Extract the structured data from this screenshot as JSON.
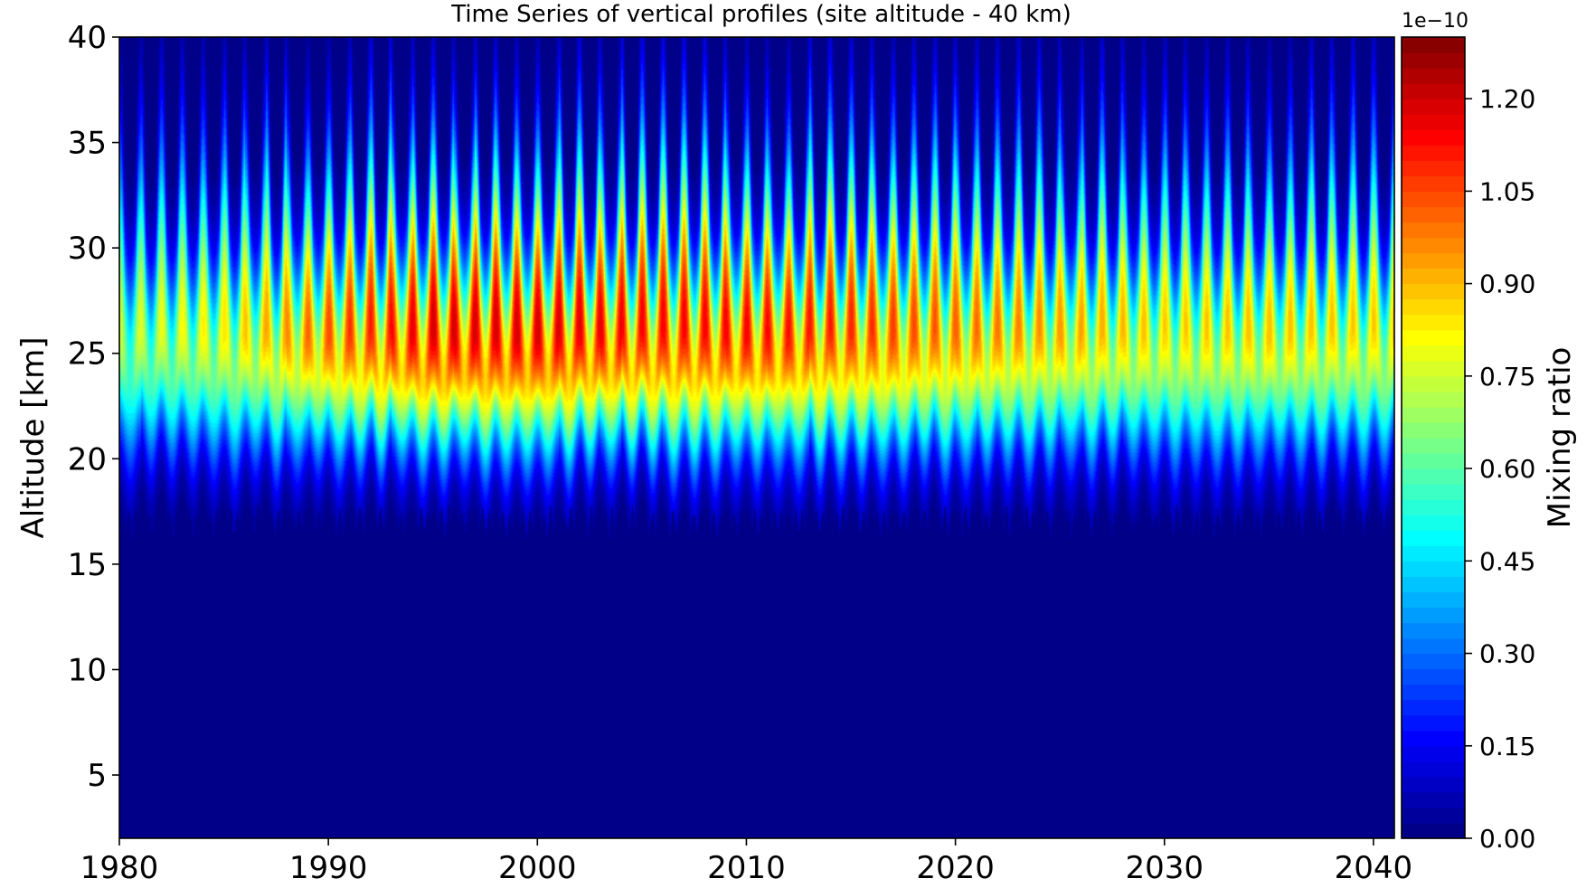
{
  "chart_data": {
    "type": "heatmap",
    "title": "Time Series of vertical profiles (site altitude - 40 km)",
    "xlabel": "",
    "ylabel": "Altitude [km]",
    "colorbar_label": "Mixing ratio",
    "colorbar_offset": "1e−10",
    "colormap": "jet",
    "xlim": [
      1980,
      2041
    ],
    "ylim": [
      2,
      40
    ],
    "clim": [
      0,
      1.3
    ],
    "x_ticks": [
      1980,
      1990,
      2000,
      2010,
      2020,
      2030,
      2040
    ],
    "x_tick_labels": [
      "1980",
      "1990",
      "2000",
      "2010",
      "2020",
      "2030",
      "2040"
    ],
    "y_ticks": [
      5,
      10,
      15,
      20,
      25,
      30,
      35,
      40
    ],
    "y_tick_labels": [
      "5",
      "10",
      "15",
      "20",
      "25",
      "30",
      "35",
      "40"
    ],
    "colorbar_ticks": [
      0,
      0.15,
      0.3,
      0.45,
      0.6,
      0.75,
      0.9,
      1.05,
      1.2
    ],
    "colorbar_tick_labels": [
      "0.00",
      "0.15",
      "0.30",
      "0.45",
      "0.60",
      "0.75",
      "0.90",
      "1.05",
      "1.20"
    ],
    "profile": {
      "peak_altitude_km": [
        24,
        26
      ],
      "lower_edge_km": 17,
      "upper_edge_km": 37,
      "seasonal_cycle_years": 1
    },
    "peak_by_year": [
      {
        "year": 1980,
        "peak": 0.75
      },
      {
        "year": 1985,
        "peak": 0.85
      },
      {
        "year": 1990,
        "peak": 1.05
      },
      {
        "year": 1995,
        "peak": 1.2
      },
      {
        "year": 2000,
        "peak": 1.2
      },
      {
        "year": 2005,
        "peak": 1.15
      },
      {
        "year": 2010,
        "peak": 1.15
      },
      {
        "year": 2015,
        "peak": 1.1
      },
      {
        "year": 2020,
        "peak": 1.02
      },
      {
        "year": 2025,
        "peak": 0.95
      },
      {
        "year": 2030,
        "peak": 0.88
      },
      {
        "year": 2035,
        "peak": 0.9
      },
      {
        "year": 2041,
        "peak": 0.88
      }
    ]
  }
}
